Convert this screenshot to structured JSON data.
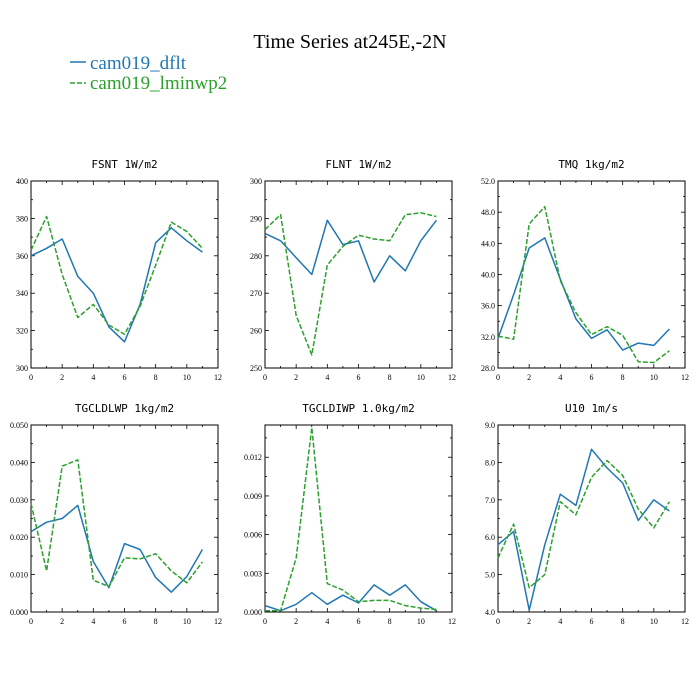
{
  "figure": {
    "title": "Time Series at245E,-2N",
    "colors": {
      "cam019_dflt": "#1f77b4",
      "cam019_lminwp2": "#2ca02c"
    }
  },
  "legend": [
    {
      "name": "cam019_dflt",
      "color": "#1f77b4",
      "dash": "solid"
    },
    {
      "name": "cam019_lminwp2",
      "color": "#2ca02c",
      "dash": "dashed"
    }
  ],
  "chart_data": [
    {
      "type": "line",
      "title": "FSNT  1W/m2",
      "x": [
        0,
        1,
        2,
        3,
        4,
        5,
        6,
        7,
        8,
        9,
        10,
        11
      ],
      "xlim": [
        0,
        12
      ],
      "xticks": [
        0,
        2,
        4,
        6,
        8,
        10,
        12
      ],
      "xtick_labels": [
        "0",
        "2",
        "4",
        "6",
        "8",
        "10",
        "12"
      ],
      "ylim": [
        300,
        400
      ],
      "yticks": [
        300,
        320,
        340,
        360,
        380,
        400
      ],
      "ytick_labels": [
        "300",
        "320",
        "340",
        "360",
        "380",
        "400"
      ],
      "series": [
        {
          "name": "cam019_dflt",
          "values": [
            360,
            364,
            369,
            349,
            340,
            322,
            314,
            334,
            367,
            375,
            368,
            362
          ]
        },
        {
          "name": "cam019_lminwp2",
          "values": [
            363,
            381,
            350,
            327,
            334,
            323,
            318,
            333,
            355,
            378,
            373,
            364
          ]
        }
      ]
    },
    {
      "type": "line",
      "title": "FLNT  1W/m2",
      "x": [
        0,
        1,
        2,
        3,
        4,
        5,
        6,
        7,
        8,
        9,
        10,
        11
      ],
      "xlim": [
        0,
        12
      ],
      "xticks": [
        0,
        2,
        4,
        6,
        8,
        10,
        12
      ],
      "xtick_labels": [
        "0",
        "2",
        "4",
        "6",
        "8",
        "10",
        "12"
      ],
      "ylim": [
        250,
        300
      ],
      "yticks": [
        250,
        260,
        270,
        280,
        290,
        300
      ],
      "ytick_labels": [
        "250",
        "260",
        "270",
        "280",
        "290",
        "300"
      ],
      "series": [
        {
          "name": "cam019_dflt",
          "values": [
            286,
            284,
            279.5,
            275,
            289.5,
            283,
            284,
            273,
            280,
            276,
            284,
            289.5
          ]
        },
        {
          "name": "cam019_lminwp2",
          "values": [
            287,
            291,
            264,
            253.5,
            277.5,
            282.5,
            285.5,
            284.5,
            284,
            291,
            291.5,
            290.5
          ]
        }
      ]
    },
    {
      "type": "line",
      "title": "TMQ  1kg/m2",
      "x": [
        0,
        1,
        2,
        3,
        4,
        5,
        6,
        7,
        8,
        9,
        10,
        11
      ],
      "xlim": [
        0,
        12
      ],
      "xticks": [
        0,
        2,
        4,
        6,
        8,
        10,
        12
      ],
      "xtick_labels": [
        "0",
        "2",
        "4",
        "6",
        "8",
        "10",
        "12"
      ],
      "ylim": [
        28,
        52
      ],
      "yticks": [
        28,
        32,
        36,
        40,
        44,
        48,
        52
      ],
      "ytick_labels": [
        "28.0",
        "32.0",
        "36.0",
        "40.0",
        "44.0",
        "48.0",
        "52.0"
      ],
      "series": [
        {
          "name": "cam019_dflt",
          "values": [
            31.8,
            37.4,
            43.4,
            44.7,
            39.4,
            34.3,
            31.8,
            32.9,
            30.3,
            31.2,
            30.9,
            33.0
          ]
        },
        {
          "name": "cam019_lminwp2",
          "values": [
            32.1,
            31.7,
            46.5,
            48.7,
            39.2,
            35.1,
            32.3,
            33.3,
            32.2,
            28.8,
            28.7,
            30.2
          ]
        }
      ]
    },
    {
      "type": "line",
      "title": "TGCLDLWP  1kg/m2",
      "x": [
        0,
        1,
        2,
        3,
        4,
        5,
        6,
        7,
        8,
        9,
        10,
        11
      ],
      "xlim": [
        0,
        12
      ],
      "xticks": [
        0,
        2,
        4,
        6,
        8,
        10,
        12
      ],
      "xtick_labels": [
        "0",
        "2",
        "4",
        "6",
        "8",
        "10",
        "12"
      ],
      "ylim": [
        0,
        0.05
      ],
      "yticks": [
        0,
        0.01,
        0.02,
        0.03,
        0.04,
        0.05
      ],
      "ytick_labels": [
        "0.000",
        "0.010",
        "0.020",
        "0.030",
        "0.040",
        "0.050"
      ],
      "series": [
        {
          "name": "cam019_dflt",
          "values": [
            0.0215,
            0.024,
            0.025,
            0.0285,
            0.0135,
            0.0065,
            0.0183,
            0.0167,
            0.0092,
            0.0053,
            0.0095,
            0.0167
          ]
        },
        {
          "name": "cam019_lminwp2",
          "values": [
            0.029,
            0.011,
            0.039,
            0.0407,
            0.0085,
            0.0068,
            0.0145,
            0.0142,
            0.0156,
            0.011,
            0.0078,
            0.0134
          ]
        }
      ]
    },
    {
      "type": "line",
      "title": "TGCLDIWP  1.0kg/m2",
      "x": [
        0,
        1,
        2,
        3,
        4,
        5,
        6,
        7,
        8,
        9,
        10,
        11
      ],
      "xlim": [
        0,
        12
      ],
      "xticks": [
        0,
        2,
        4,
        6,
        8,
        10,
        12
      ],
      "xtick_labels": [
        "0",
        "2",
        "4",
        "6",
        "8",
        "10",
        "12"
      ],
      "ylim": [
        0,
        0.0145
      ],
      "yticks": [
        0,
        0.003,
        0.006,
        0.009,
        0.012
      ],
      "ytick_labels": [
        "0.000",
        "0.003",
        "0.006",
        "0.009",
        "0.012"
      ],
      "series": [
        {
          "name": "cam019_dflt",
          "values": [
            0.0005,
            0.0001,
            0.0006,
            0.0015,
            0.0006,
            0.0013,
            0.0007,
            0.0021,
            0.0013,
            0.0021,
            0.0008,
            0.0001
          ]
        },
        {
          "name": "cam019_lminwp2",
          "values": [
            0.0001,
            0.0001,
            0.0042,
            0.0143,
            0.0022,
            0.0017,
            0.0008,
            0.0009,
            0.0009,
            0.0005,
            0.0003,
            0.0002
          ]
        }
      ]
    },
    {
      "type": "line",
      "title": "U10  1m/s",
      "x": [
        0,
        1,
        2,
        3,
        4,
        5,
        6,
        7,
        8,
        9,
        10,
        11
      ],
      "xlim": [
        0,
        12
      ],
      "xticks": [
        0,
        2,
        4,
        6,
        8,
        10,
        12
      ],
      "xtick_labels": [
        "0",
        "2",
        "4",
        "6",
        "8",
        "10",
        "12"
      ],
      "ylim": [
        4,
        9
      ],
      "yticks": [
        4,
        5,
        6,
        7,
        8,
        9
      ],
      "ytick_labels": [
        "4.0",
        "5.0",
        "6.0",
        "7.0",
        "8.0",
        "9.0"
      ],
      "series": [
        {
          "name": "cam019_dflt",
          "values": [
            5.8,
            6.15,
            4.05,
            5.8,
            7.15,
            6.85,
            8.35,
            7.85,
            7.45,
            6.45,
            7.0,
            6.7
          ]
        },
        {
          "name": "cam019_lminwp2",
          "values": [
            5.45,
            6.35,
            4.65,
            5.0,
            6.95,
            6.6,
            7.6,
            8.05,
            7.65,
            6.75,
            6.25,
            6.95
          ]
        }
      ]
    }
  ]
}
